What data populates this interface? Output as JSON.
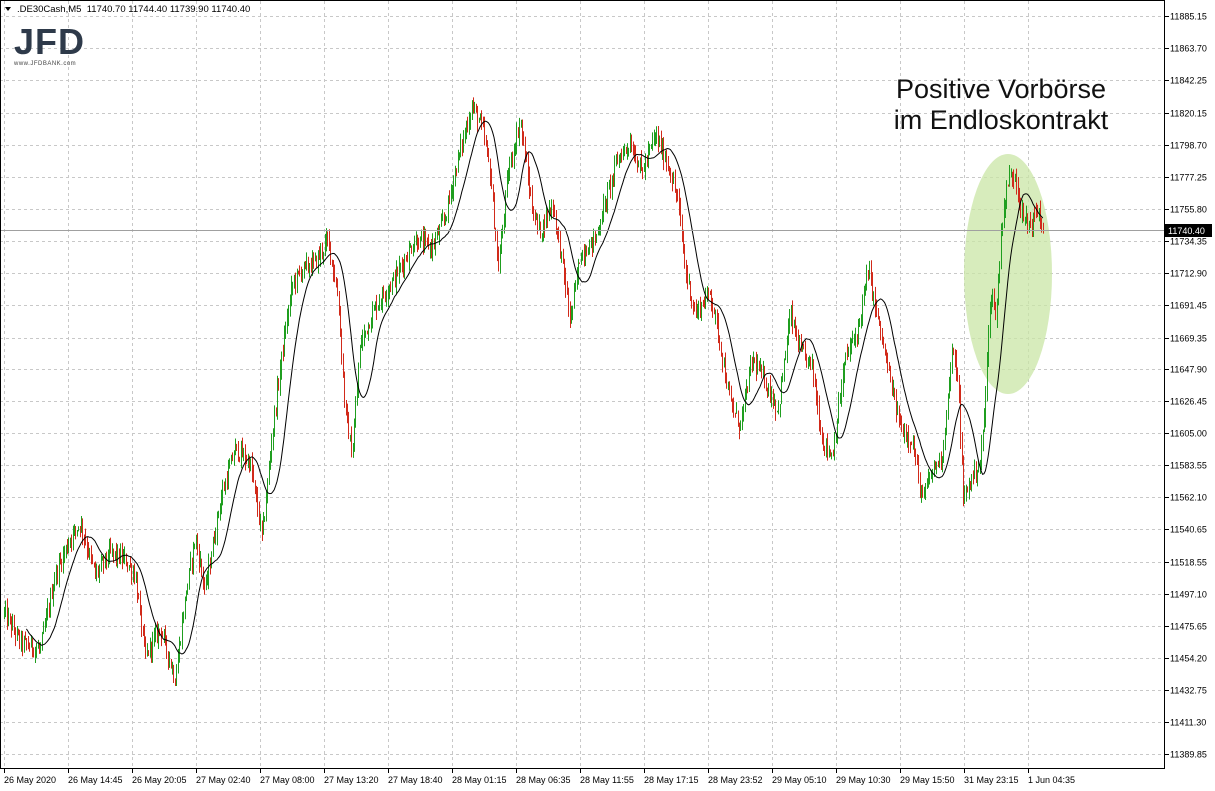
{
  "header": {
    "symbol": ".DE30Cash,M5",
    "ohlc": "11740.70 11744.40 11739.90 11740.40"
  },
  "logo": {
    "main": "JFD",
    "sub": "www.JFDBANK.com"
  },
  "annotation": {
    "line1": "Positive Vorbörse",
    "line2": "im Endloskontrakt"
  },
  "colors": {
    "up": "#1f9e1f",
    "down": "#d12a1a",
    "ma": "#000000",
    "grid": "#c8c8c8",
    "highlight": "#c9e6a6",
    "current_price_bg": "#000000"
  },
  "chart_data": {
    "type": "candlestick",
    "symbol": ".DE30Cash",
    "timeframe": "M5",
    "ylim": [
      11380.0,
      11895.0
    ],
    "y_ticks": [
      "11885.15",
      "11863.70",
      "11842.25",
      "11820.15",
      "11798.70",
      "11777.25",
      "11755.80",
      "11734.35",
      "11712.90",
      "11691.45",
      "11669.35",
      "11647.90",
      "11626.45",
      "11605.00",
      "11583.55",
      "11562.10",
      "11540.65",
      "11518.55",
      "11497.10",
      "11475.65",
      "11454.20",
      "11432.75",
      "11411.30",
      "11389.85"
    ],
    "current_price": "11740.40",
    "x_ticks": [
      "26 May 2020",
      "26 May 14:45",
      "26 May 20:05",
      "27 May 02:40",
      "27 May 08:00",
      "27 May 13:20",
      "27 May 18:40",
      "28 May 01:15",
      "28 May 06:35",
      "28 May 11:55",
      "28 May 17:15",
      "28 May 23:52",
      "29 May 05:10",
      "29 May 10:30",
      "29 May 15:50",
      "31 May 23:15",
      "1 Jun 04:35"
    ],
    "indicator": "moving average",
    "close_path": [
      [
        0,
        11490
      ],
      [
        20,
        11465
      ],
      [
        40,
        11460
      ],
      [
        55,
        11510
      ],
      [
        70,
        11535
      ],
      [
        80,
        11545
      ],
      [
        95,
        11510
      ],
      [
        110,
        11525
      ],
      [
        125,
        11520
      ],
      [
        135,
        11510
      ],
      [
        145,
        11455
      ],
      [
        160,
        11475
      ],
      [
        175,
        11440
      ],
      [
        185,
        11495
      ],
      [
        195,
        11535
      ],
      [
        205,
        11500
      ],
      [
        220,
        11560
      ],
      [
        235,
        11595
      ],
      [
        250,
        11585
      ],
      [
        262,
        11535
      ],
      [
        272,
        11605
      ],
      [
        282,
        11660
      ],
      [
        292,
        11705
      ],
      [
        302,
        11715
      ],
      [
        315,
        11720
      ],
      [
        328,
        11735
      ],
      [
        338,
        11695
      ],
      [
        345,
        11620
      ],
      [
        352,
        11590
      ],
      [
        360,
        11665
      ],
      [
        375,
        11690
      ],
      [
        395,
        11710
      ],
      [
        415,
        11735
      ],
      [
        432,
        11730
      ],
      [
        445,
        11750
      ],
      [
        458,
        11790
      ],
      [
        472,
        11825
      ],
      [
        482,
        11810
      ],
      [
        490,
        11780
      ],
      [
        498,
        11715
      ],
      [
        508,
        11780
      ],
      [
        520,
        11815
      ],
      [
        532,
        11755
      ],
      [
        540,
        11740
      ],
      [
        552,
        11760
      ],
      [
        562,
        11720
      ],
      [
        570,
        11680
      ],
      [
        580,
        11725
      ],
      [
        595,
        11735
      ],
      [
        605,
        11760
      ],
      [
        618,
        11790
      ],
      [
        630,
        11800
      ],
      [
        642,
        11780
      ],
      [
        655,
        11805
      ],
      [
        668,
        11785
      ],
      [
        678,
        11760
      ],
      [
        685,
        11715
      ],
      [
        695,
        11685
      ],
      [
        710,
        11700
      ],
      [
        720,
        11665
      ],
      [
        730,
        11625
      ],
      [
        740,
        11610
      ],
      [
        752,
        11655
      ],
      [
        765,
        11640
      ],
      [
        778,
        11620
      ],
      [
        790,
        11685
      ],
      [
        800,
        11660
      ],
      [
        812,
        11650
      ],
      [
        822,
        11600
      ],
      [
        832,
        11590
      ],
      [
        845,
        11655
      ],
      [
        858,
        11675
      ],
      [
        868,
        11715
      ],
      [
        878,
        11680
      ],
      [
        890,
        11640
      ],
      [
        900,
        11610
      ],
      [
        912,
        11600
      ],
      [
        922,
        11560
      ],
      [
        932,
        11580
      ],
      [
        942,
        11590
      ],
      [
        952,
        11660
      ],
      [
        958,
        11640
      ],
      [
        963,
        11560
      ],
      [
        968,
        11570
      ],
      [
        975,
        11580
      ],
      [
        980,
        11585
      ],
      [
        985,
        11625
      ],
      [
        990,
        11700
      ],
      [
        996,
        11685
      ],
      [
        1002,
        11750
      ],
      [
        1008,
        11775
      ],
      [
        1015,
        11780
      ],
      [
        1022,
        11750
      ],
      [
        1030,
        11745
      ],
      [
        1038,
        11755
      ],
      [
        1043,
        11740
      ]
    ]
  }
}
